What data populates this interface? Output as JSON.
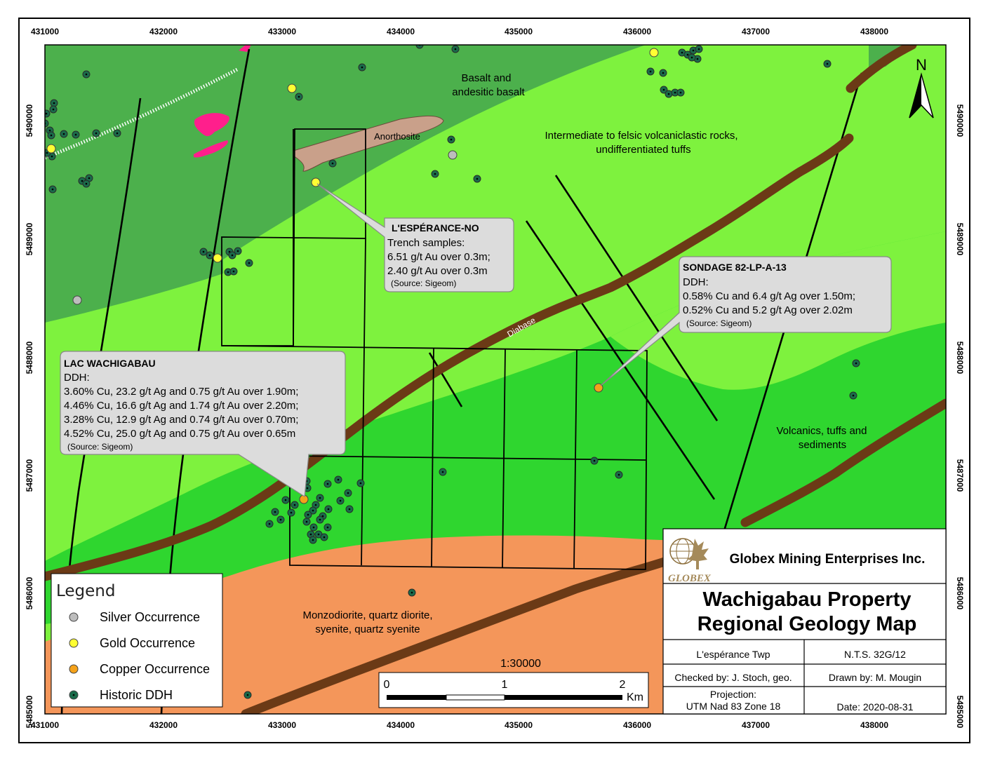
{
  "colors": {
    "light_green": "#7ef23e",
    "dark_green": "#4cb04c",
    "bright_green": "#2fd62f",
    "orange": "#f4965a",
    "brown": "#6b3a16",
    "pink": "#ff1f8c",
    "anorthosite": "#c9a08a",
    "ddh": "#1a6b4a",
    "gold": "#ffff33",
    "copper": "#f5a21a",
    "silver": "#bdbdbd"
  },
  "axes": {
    "x_ticks": [
      "431000",
      "432000",
      "433000",
      "434000",
      "435000",
      "436000",
      "437000",
      "438000"
    ],
    "y_ticks": [
      "5490000",
      "5489000",
      "5488000",
      "5487000",
      "5486000",
      "5485000"
    ]
  },
  "north_label": "N",
  "geology_labels": {
    "basalt": [
      "Basalt and",
      "andesitic basalt"
    ],
    "anorthosite": "Anorthosite",
    "intermediate": [
      "Intermediate to felsic volcaniclastic rocks,",
      "undifferentiated tuffs"
    ],
    "volcanics": [
      "Volcanics, tuffs and",
      "sediments"
    ],
    "monzodiorite": [
      "Monzodiorite, quartz diorite,",
      "syenite, quartz syenite"
    ],
    "diabase": "Diabase"
  },
  "callouts": {
    "esperance": {
      "title": "L'ESPÉRANCE-NO",
      "lines": [
        "Trench samples:",
        "6.51 g/t Au over 0.3m;",
        "2.40 g/t Au over 0.3m"
      ],
      "source": "(Source: Sigeom)"
    },
    "sondage": {
      "title": "SONDAGE 82-LP-A-13",
      "lines": [
        "DDH:",
        "0.58% Cu and 6.4 g/t Ag over 1.50m;",
        "0.52% Cu and 5.2 g/t Ag over 2.02m"
      ],
      "source": "(Source: Sigeom)"
    },
    "lac": {
      "title": "LAC WACHIGABAU",
      "lines": [
        "DDH:",
        "3.60% Cu, 23.2 g/t Ag and 0.75 g/t Au over 1.90m;",
        "4.46% Cu, 16.6 g/t Ag and 1.74 g/t Au over 2.20m;",
        "3.28% Cu, 12.9 g/t Ag and 0.74 g/t Au over 0.70m;",
        "4.52% Cu, 25.0 g/t Ag and 0.75 g/t Au over 0.65m"
      ],
      "source": "(Source: Sigeom)"
    }
  },
  "legend": {
    "title": "Legend",
    "items": [
      {
        "label": "Silver Occurrence",
        "color": "#bdbdbd"
      },
      {
        "label": "Gold Occurrence",
        "color": "#ffff33"
      },
      {
        "label": "Copper Occurrence",
        "color": "#f5a21a"
      },
      {
        "label": "Historic DDH",
        "color": "#1a6b4a"
      }
    ]
  },
  "scalebar": {
    "ratio": "1:30000",
    "labels": [
      "0",
      "1",
      "2"
    ],
    "unit": "Km"
  },
  "title_block": {
    "company": "Globex Mining Enterprises Inc.",
    "logo_text": "GLOBEX",
    "title_line1": "Wachigabau Property",
    "title_line2": "Regional Geology Map",
    "township": "L'espérance Twp",
    "nts": "N.T.S. 32G/12",
    "checked": "Checked by: J. Stoch, geo.",
    "drawn": "Drawn by: M. Mougin",
    "projection_line1": "Projection:",
    "projection_line2": "UTM Nad 83 Zone 18",
    "date": "Date: 2020-08-31"
  }
}
